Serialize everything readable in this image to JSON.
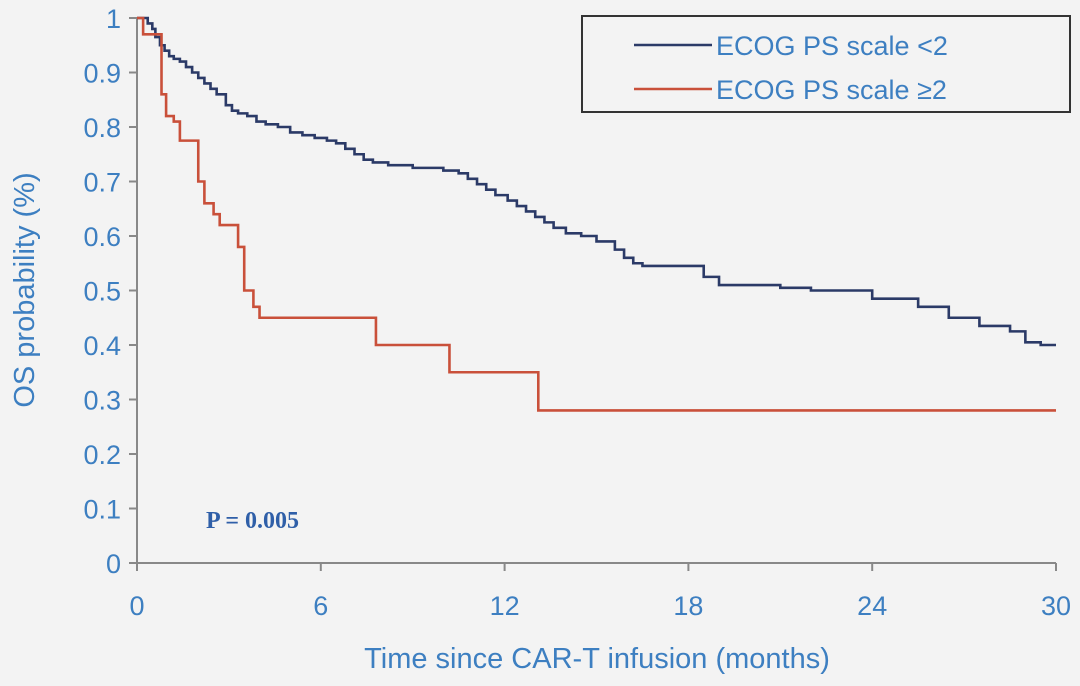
{
  "chart_data": {
    "type": "line",
    "step": true,
    "xlabel": "Time since CAR-T infusion (months)",
    "ylabel": "OS probability (%)",
    "xlim": [
      0,
      30
    ],
    "ylim": [
      0,
      1
    ],
    "x_ticks": [
      "0",
      "6",
      "12",
      "18",
      "24",
      "30"
    ],
    "y_ticks": [
      "0",
      "0.1",
      "0.2",
      "0.3",
      "0.4",
      "0.5",
      "0.6",
      "0.7",
      "0.8",
      "0.9",
      "1"
    ],
    "grid": false,
    "legend_position": "top-right",
    "annotation": "P = 0.005",
    "series": [
      {
        "name": "ECOG PS scale <2",
        "color": "#2b3a67",
        "x": [
          0,
          0.35,
          0.5,
          0.6,
          0.75,
          0.9,
          1.05,
          1.2,
          1.4,
          1.6,
          1.8,
          2.0,
          2.2,
          2.4,
          2.6,
          2.9,
          3.1,
          3.3,
          3.6,
          3.9,
          4.2,
          4.6,
          5.0,
          5.4,
          5.8,
          6.2,
          6.5,
          6.8,
          7.1,
          7.4,
          7.7,
          8.2,
          9.0,
          9.5,
          10.0,
          10.5,
          10.8,
          11.1,
          11.4,
          11.7,
          12.1,
          12.4,
          12.7,
          13.0,
          13.3,
          13.6,
          14.0,
          14.5,
          15.0,
          15.6,
          15.9,
          16.2,
          16.5,
          17.0,
          18.0,
          18.5,
          19.0,
          20.0,
          21.0,
          22.0,
          24.0,
          25.0,
          25.5,
          26.5,
          27.5,
          28.5,
          29.0,
          29.5,
          30.0
        ],
        "y": [
          1,
          0.99,
          0.98,
          0.965,
          0.95,
          0.94,
          0.93,
          0.925,
          0.92,
          0.91,
          0.9,
          0.89,
          0.88,
          0.87,
          0.86,
          0.84,
          0.83,
          0.825,
          0.82,
          0.81,
          0.805,
          0.8,
          0.79,
          0.785,
          0.78,
          0.775,
          0.77,
          0.76,
          0.75,
          0.74,
          0.735,
          0.73,
          0.725,
          0.725,
          0.72,
          0.715,
          0.705,
          0.695,
          0.685,
          0.675,
          0.665,
          0.655,
          0.645,
          0.635,
          0.625,
          0.615,
          0.605,
          0.6,
          0.59,
          0.575,
          0.56,
          0.55,
          0.545,
          0.545,
          0.545,
          0.525,
          0.51,
          0.51,
          0.505,
          0.5,
          0.485,
          0.485,
          0.47,
          0.45,
          0.435,
          0.425,
          0.405,
          0.4,
          0.4
        ]
      },
      {
        "name": "ECOG PS scale ≥2",
        "color": "#c9503a",
        "x": [
          0,
          0.2,
          0.8,
          0.95,
          1.2,
          1.4,
          2.0,
          2.2,
          2.5,
          2.7,
          3.3,
          3.5,
          3.8,
          4.0,
          7.8,
          10.2,
          13.1,
          30.0
        ],
        "y": [
          1,
          0.97,
          0.86,
          0.82,
          0.81,
          0.775,
          0.7,
          0.66,
          0.64,
          0.62,
          0.58,
          0.5,
          0.47,
          0.45,
          0.4,
          0.35,
          0.28,
          0.28
        ]
      }
    ]
  }
}
